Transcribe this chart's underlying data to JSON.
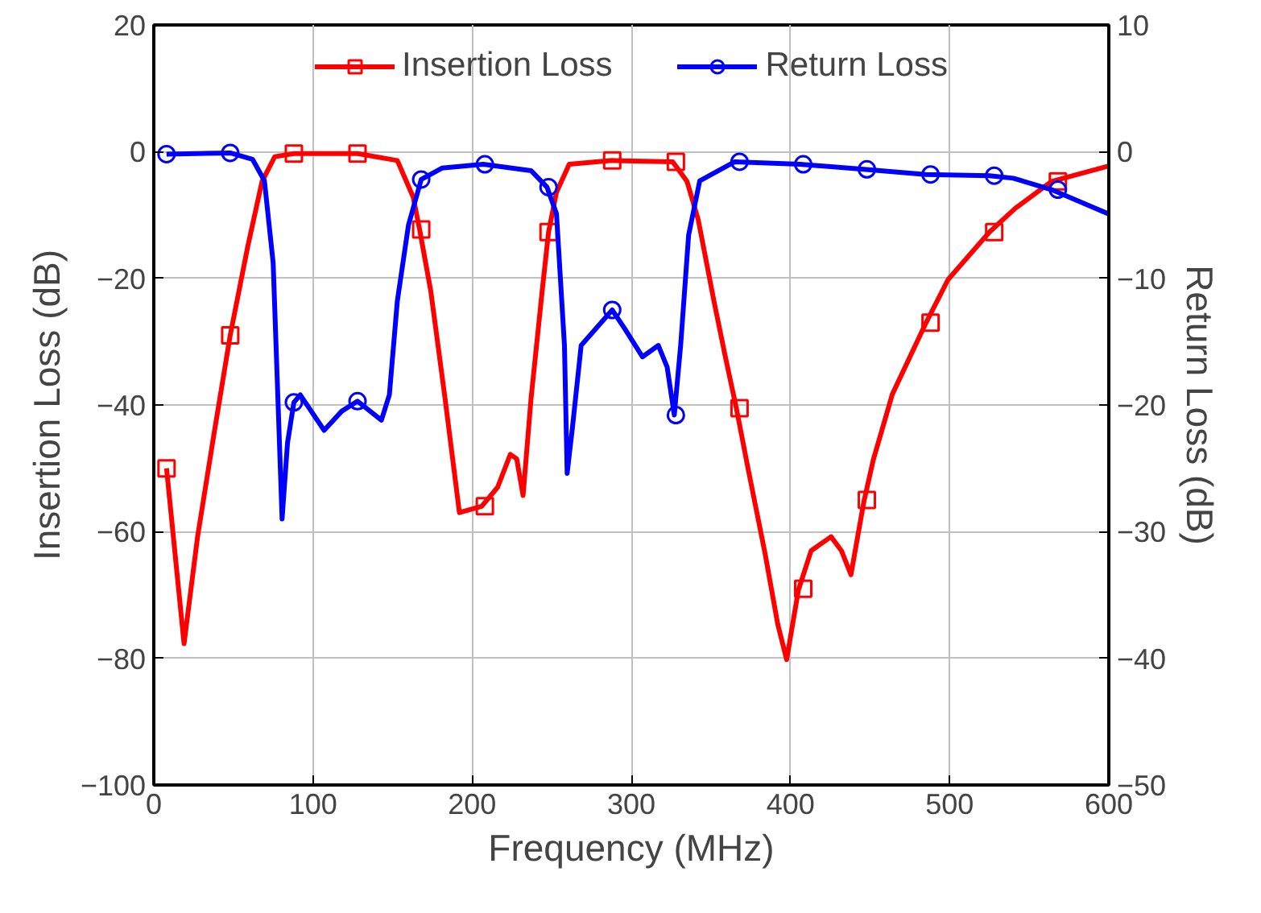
{
  "chart_data": {
    "type": "line",
    "xlabel": "Frequency (MHz)",
    "ylabel": "Insertion Loss (dB)",
    "y2label": "Return Loss (dB)",
    "xlim": [
      0,
      600
    ],
    "ylim": [
      -100,
      20
    ],
    "y2lim": [
      -50,
      10
    ],
    "xticks": [
      0,
      100,
      200,
      300,
      400,
      500,
      600
    ],
    "yticks": [
      -100,
      -80,
      -60,
      -40,
      -20,
      0,
      20
    ],
    "y2ticks": [
      -50,
      -40,
      -30,
      -20,
      -10,
      0,
      10
    ],
    "grid": true,
    "legend": "top",
    "line_style": "solid",
    "series": [
      {
        "name": "Insertion Loss",
        "color": "#ff0000",
        "axis": "y",
        "x": [
          8,
          19,
          27.5,
          38,
          48,
          59,
          68,
          76,
          88,
          128,
          153,
          163,
          167,
          174,
          183,
          192,
          206,
          216,
          224,
          228,
          232,
          237,
          244,
          248,
          253,
          261,
          288,
          326,
          335,
          342,
          352,
          359,
          366,
          373,
          384,
          392,
          397.6,
          405,
          413,
          425.5,
          432,
          438,
          446,
          452,
          464,
          485,
          499,
          525,
          541,
          564,
          599.5
        ],
        "values": [
          -50,
          -77.7,
          -60.8,
          -44.3,
          -29,
          -15,
          -4.7,
          -0.8,
          -0.3,
          -0.3,
          -1.4,
          -7.2,
          -12.3,
          -22,
          -39,
          -57,
          -56,
          -53,
          -47.8,
          -48.5,
          -54.3,
          -39,
          -22,
          -12.7,
          -6.4,
          -2,
          -1.4,
          -1.6,
          -4.7,
          -10.7,
          -23.7,
          -32.3,
          -40.5,
          -49.6,
          -63.4,
          -74.6,
          -80.2,
          -69.2,
          -63,
          -60.8,
          -63,
          -66.8,
          -55.4,
          -48.7,
          -38.3,
          -27.1,
          -20.2,
          -12.7,
          -9,
          -4.7,
          -2.3
        ]
      },
      {
        "color": "#ff0000",
        "type": "scatter",
        "marker": "square",
        "axis": "y",
        "x": [
          8,
          48,
          88,
          128,
          168,
          208,
          248,
          288,
          328,
          368,
          408,
          448,
          488,
          528,
          568
        ],
        "values": [
          -50,
          -29,
          -0.3,
          -0.3,
          -12.3,
          -56,
          -12.7,
          -1.4,
          -1.6,
          -40.5,
          -69,
          -55,
          -27,
          -12.7,
          -4.7
        ]
      },
      {
        "name": "Return Loss",
        "color": "#0000ff",
        "axis": "y2",
        "x": [
          8,
          48,
          62,
          69.5,
          75,
          78,
          80.6,
          84,
          88,
          92,
          107,
          118,
          128,
          143,
          148,
          153,
          160,
          168,
          181,
          207,
          237,
          247,
          253,
          258,
          259.7,
          263,
          268.5,
          288,
          296,
          307,
          317,
          322.5,
          327,
          331,
          336,
          343,
          365,
          406,
          446,
          485,
          525,
          540,
          564,
          599.5
        ],
        "values": [
          -0.2,
          -0.1,
          -0.6,
          -2.3,
          -8.8,
          -19.6,
          -29,
          -23,
          -19.8,
          -19.2,
          -22,
          -20.5,
          -19.7,
          -21.2,
          -19.2,
          -11.8,
          -5.8,
          -2.2,
          -1.3,
          -1,
          -1.5,
          -2.8,
          -4.9,
          -15.3,
          -25.4,
          -21.8,
          -15.3,
          -12.5,
          -14,
          -16.2,
          -15.3,
          -17,
          -20.8,
          -15.3,
          -6.6,
          -2.3,
          -0.8,
          -1,
          -1.4,
          -1.8,
          -1.9,
          -2.1,
          -3,
          -4.9
        ]
      },
      {
        "color": "#0000ff",
        "type": "scatter",
        "marker": "circle",
        "axis": "y2",
        "x": [
          8,
          48,
          88,
          128,
          168,
          208,
          248,
          288,
          328,
          368,
          408,
          448,
          488,
          528,
          568
        ],
        "values": [
          -0.2,
          -0.1,
          -19.8,
          -19.7,
          -2.2,
          -1,
          -2.8,
          -12.5,
          -20.8,
          -0.8,
          -1,
          -1.4,
          -1.8,
          -1.9,
          -3
        ]
      }
    ]
  }
}
